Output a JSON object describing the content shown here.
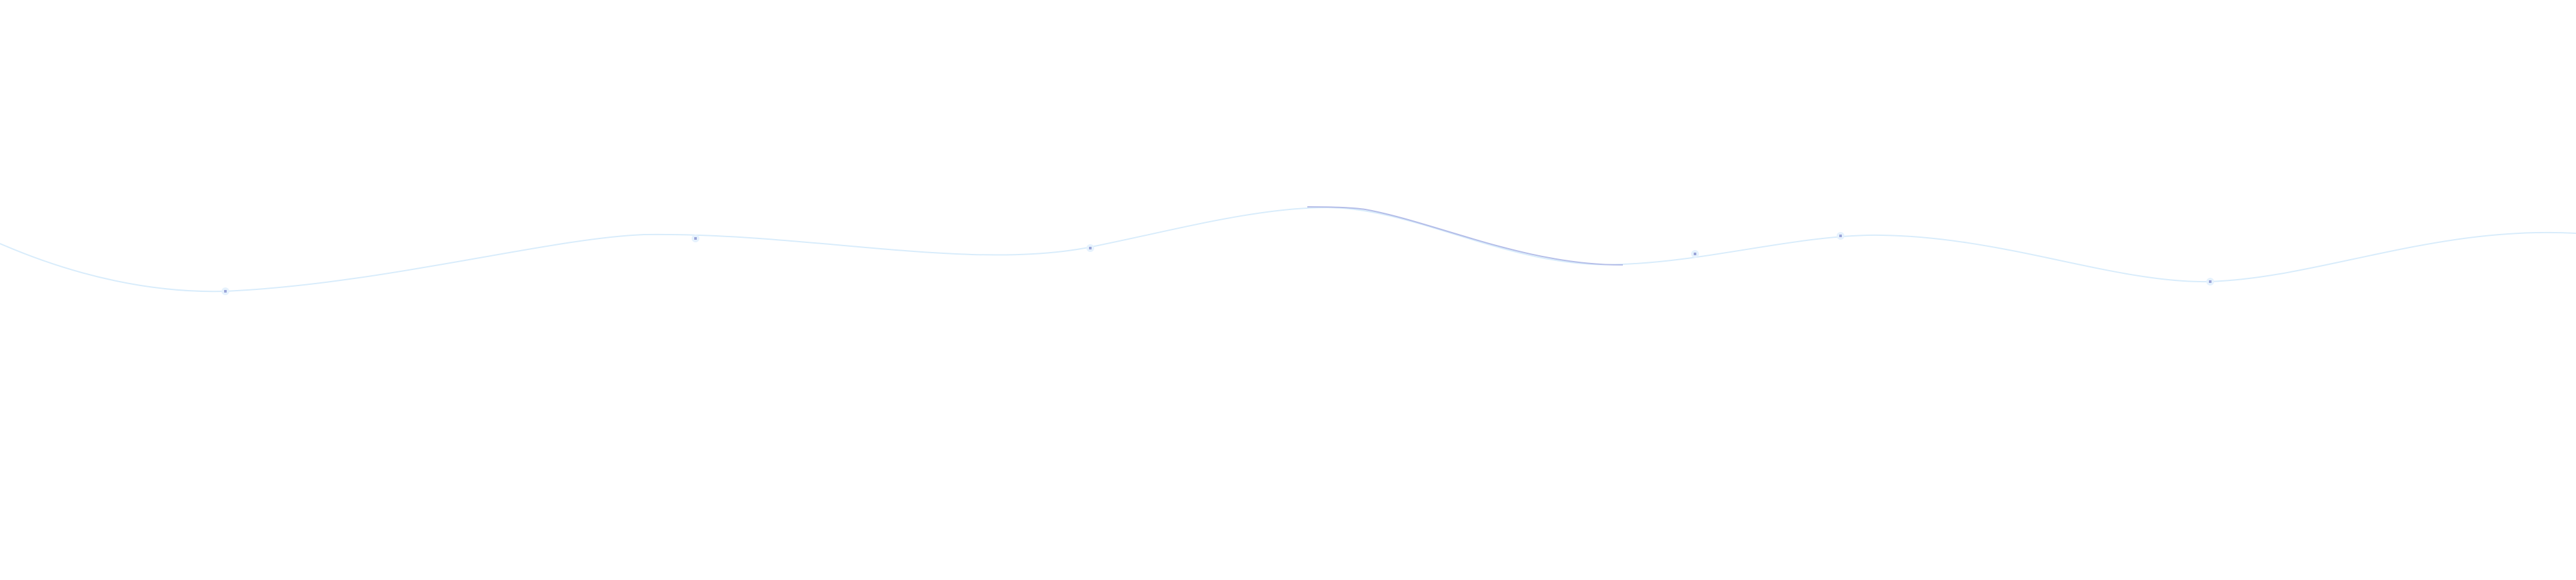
{
  "decoration": {
    "type": "wave-line",
    "colors": {
      "background": "#ffffff",
      "line_faint": "#d8ecfb",
      "line_highlight": "#b4bde8",
      "sparkle": "#9aa4d8"
    },
    "sparkle_count": 6
  }
}
